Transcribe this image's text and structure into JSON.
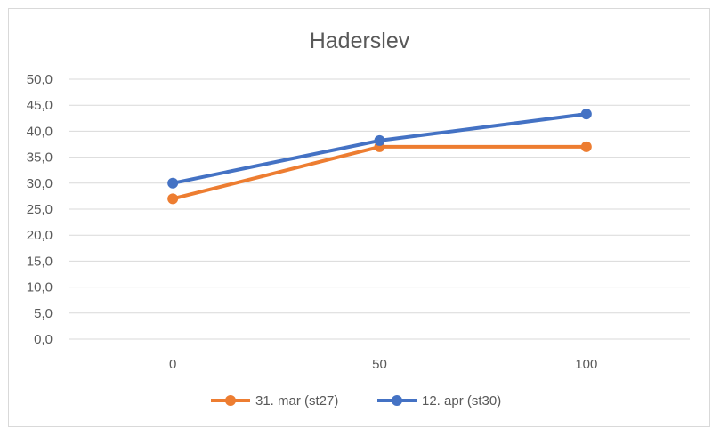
{
  "chart_data": {
    "type": "line",
    "title": "Haderslev",
    "categories": [
      "0",
      "50",
      "100"
    ],
    "ylim": [
      0,
      50
    ],
    "yticks": [
      "0,0",
      "5,0",
      "10,0",
      "15,0",
      "20,0",
      "25,0",
      "30,0",
      "35,0",
      "40,0",
      "45,0",
      "50,0"
    ],
    "grid": true,
    "legend": "bottom",
    "series": [
      {
        "name": "31. mar (st27)",
        "color": "#ED7D31",
        "values": [
          27.0,
          37.0,
          37.0
        ]
      },
      {
        "name": "12. apr (st30)",
        "color": "#4472C4",
        "values": [
          30.0,
          38.2,
          43.3
        ]
      }
    ]
  }
}
